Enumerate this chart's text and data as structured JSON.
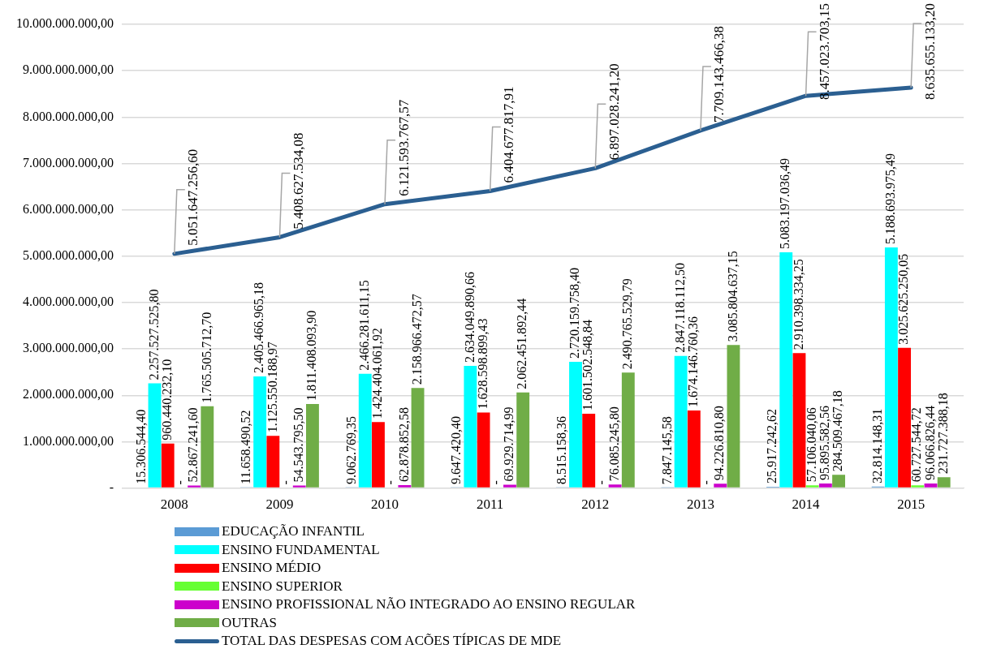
{
  "chart_data": {
    "type": "bar",
    "categories": [
      "2008",
      "2009",
      "2010",
      "2011",
      "2012",
      "2013",
      "2014",
      "2015"
    ],
    "series": [
      {
        "name": "EDUCAÇÃO INFANTIL",
        "color": "#5b9bd5",
        "values": [
          15306544.4,
          11658490.52,
          9062769.35,
          9647420.4,
          8515158.36,
          7847145.58,
          25917242.62,
          32814148.31
        ],
        "value_labels": [
          "15.306.544,40",
          "11.658.490,52",
          "9.062.769,35",
          "9.647.420,40",
          "8.515.158,36",
          "7.847.145,58",
          "25.917.242,62",
          "32.814.148,31"
        ]
      },
      {
        "name": "ENSINO FUNDAMENTAL",
        "color": "#00ffff",
        "values": [
          2257527525.8,
          2405466965.18,
          2466281611.15,
          2634049890.66,
          2720159758.4,
          2847118112.5,
          5083197036.49,
          5188693975.49
        ],
        "value_labels": [
          "2.257.527.525,80",
          "2.405.466.965,18",
          "2.466.281.611,15",
          "2.634.049.890,66",
          "2.720.159.758,40",
          "2.847.118.112,50",
          "5.083.197.036,49",
          "5.188.693.975,49"
        ]
      },
      {
        "name": "ENSINO MÉDIO",
        "color": "#ff0000",
        "values": [
          960440232.1,
          1125550188.97,
          1424404061.92,
          1628598899.43,
          1601502548.84,
          1674146760.36,
          2910398334.25,
          3025625250.05
        ],
        "value_labels": [
          "960.440.232,10",
          "1.125.550.188,97",
          "1.424.404.061,92",
          "1.628.598.899,43",
          "1.601.502.548,84",
          "1.674.146.760,36",
          "2.910.398.334,25",
          "3.025.625.250,05"
        ]
      },
      {
        "name": "ENSINO SUPERIOR",
        "color": "#66ff33",
        "values": [
          0,
          0,
          0,
          0,
          0,
          0,
          57106040.06,
          60727544.72
        ],
        "value_labels": [
          "-",
          "-",
          "-",
          "-",
          "-",
          "-",
          "57.106.040,06",
          "60.727.544,72"
        ]
      },
      {
        "name": "ENSINO PROFISSIONAL NÃO INTEGRADO AO ENSINO REGULAR",
        "color": "#cc00cc",
        "values": [
          52867241.6,
          54543795.5,
          62878852.58,
          69929714.99,
          76085245.8,
          94226810.8,
          95895582.56,
          96066826.44
        ],
        "value_labels": [
          "52.867.241,60",
          "54.543.795,50",
          "62.878.852,58",
          "69.929.714,99",
          "76.085.245,80",
          "94.226.810,80",
          "95.895.582,56",
          "96.066.826,44"
        ]
      },
      {
        "name": "OUTRAS",
        "color": "#70ad47",
        "values": [
          1765505712.7,
          1811408093.9,
          2158966472.57,
          2062451892.44,
          2490765529.79,
          3085804637.15,
          284509467.18,
          231727388.18
        ],
        "value_labels": [
          "1.765.505.712,70",
          "1.811.408.093,90",
          "2.158.966.472,57",
          "2.062.451.892,44",
          "2.490.765.529,79",
          "3.085.804.637,15",
          "284.509.467,18",
          "231.727.388,18"
        ]
      },
      {
        "name": "TOTAL DAS DESPESAS COM ACÕES TÍPICAS DE MDE",
        "type": "line",
        "color": "#2b5f91",
        "values": [
          5051647256.6,
          5408627534.08,
          6121593767.57,
          6404677817.91,
          6897028241.2,
          7709143466.38,
          8457023703.15,
          8635655133.2
        ],
        "value_labels": [
          "5.051.647.256,60",
          "5.408.627.534,08",
          "6.121.593.767,57",
          "6.404.677.817,91",
          "6.897.028.241,20",
          "7.709.143.466,38",
          "8.457.023.703,15",
          "8.635.655.133,20"
        ]
      }
    ],
    "ylim": [
      0,
      10000000000
    ],
    "yticks": [
      {
        "value": 0,
        "label": "-"
      },
      {
        "value": 1000000000,
        "label": "1.000.000.000,00"
      },
      {
        "value": 2000000000,
        "label": "2.000.000.000,00"
      },
      {
        "value": 3000000000,
        "label": "3.000.000.000,00"
      },
      {
        "value": 4000000000,
        "label": "4.000.000.000,00"
      },
      {
        "value": 5000000000,
        "label": "5.000.000.000,00"
      },
      {
        "value": 6000000000,
        "label": "6.000.000.000,00"
      },
      {
        "value": 7000000000,
        "label": "7.000.000.000,00"
      },
      {
        "value": 8000000000,
        "label": "8.000.000.000,00"
      },
      {
        "value": 9000000000,
        "label": "9.000.000.000,00"
      },
      {
        "value": 10000000000,
        "label": "10.000.000.000,00"
      }
    ],
    "grid": "y",
    "legend": "bottom",
    "marker": "none"
  }
}
